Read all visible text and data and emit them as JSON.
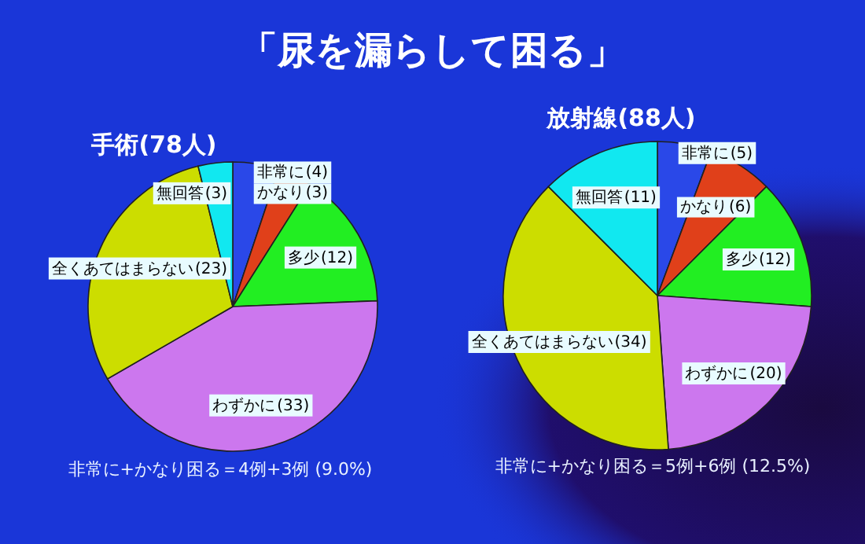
{
  "chart_data": [
    {
      "type": "pie",
      "title": "手術(78人)",
      "categories": [
        "非常に",
        "かなり",
        "多少",
        "わずかに",
        "全くあてはまらない",
        "無回答"
      ],
      "values": [
        4,
        3,
        12,
        33,
        23,
        3
      ],
      "value_labels": [
        "(4)",
        "(3)",
        "(12)",
        "(33)",
        "(23)",
        "(3)"
      ],
      "colors": [
        "#2a48e8",
        "#e0401a",
        "#22ee22",
        "#cc77ee",
        "#ccdd00",
        "#11e8f0"
      ],
      "annotations": [
        "「尿を漏らして困る」",
        "非常に+かなり困る＝4例+3例 (9.0%)"
      ]
    },
    {
      "type": "pie",
      "title": "放射線(88人)",
      "categories": [
        "非常に",
        "かなり",
        "多少",
        "わずかに",
        "全くあてはまらない",
        "無回答"
      ],
      "values": [
        5,
        6,
        12,
        20,
        34,
        11
      ],
      "value_labels": [
        "(5)",
        "(6)",
        "(12)",
        "(20)",
        "(34)",
        "(11)"
      ],
      "colors": [
        "#2a48e8",
        "#e0401a",
        "#22ee22",
        "#cc77ee",
        "#ccdd00",
        "#11e8f0"
      ],
      "annotations": [
        "非常に+かなり困る＝5例+6例 (12.5%)"
      ]
    }
  ]
}
